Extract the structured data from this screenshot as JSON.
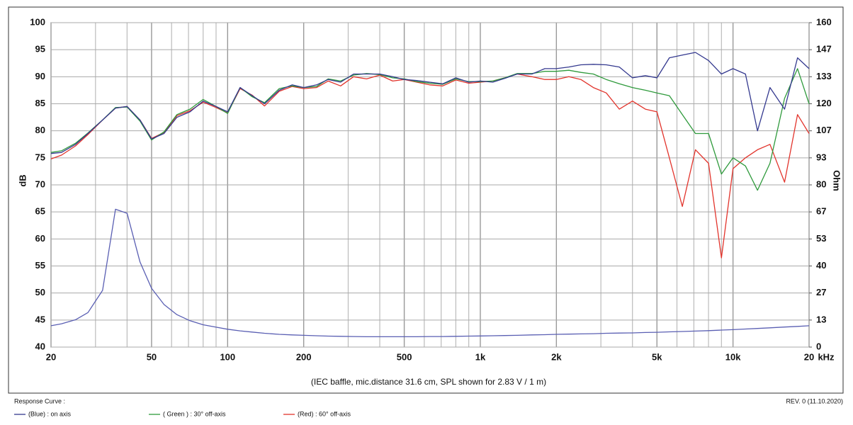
{
  "chart_data": {
    "type": "line",
    "ylabel": "dB",
    "y2label": "Ohm",
    "xlabel": "kHz",
    "caption": "(IEC baffle, mic.distance 31.6 cm, SPL shown for 2.83 V / 1 m)",
    "legend_title": "Response Curve :",
    "revision": "REV. 0 (11.10.2020)",
    "xscale": "log",
    "grid": true,
    "xlim": [
      20,
      20000
    ],
    "ylim": [
      40,
      100
    ],
    "y2lim": [
      0,
      160
    ],
    "xticks": [
      20,
      50,
      100,
      200,
      500,
      {
        "value": 1000,
        "label": "1k"
      },
      {
        "value": 2000,
        "label": "2k"
      },
      {
        "value": 5000,
        "label": "5k"
      },
      {
        "value": 10000,
        "label": "10k"
      },
      {
        "value": 20000,
        "label": "20"
      }
    ],
    "xminor": [
      30,
      40,
      60,
      70,
      80,
      90,
      300,
      400,
      600,
      700,
      800,
      900,
      3000,
      4000,
      6000,
      7000,
      8000,
      9000
    ],
    "yticks": [
      40,
      45,
      50,
      55,
      60,
      65,
      70,
      75,
      80,
      85,
      90,
      95,
      100
    ],
    "y2ticks": [
      0,
      {
        "value": 13.333,
        "label": "13"
      },
      {
        "value": 26.667,
        "label": "27"
      },
      40,
      {
        "value": 53.333,
        "label": "53"
      },
      {
        "value": 66.667,
        "label": "67"
      },
      80,
      {
        "value": 93.333,
        "label": "93"
      },
      {
        "value": 106.667,
        "label": "107"
      },
      120,
      {
        "value": 133.333,
        "label": "133"
      },
      {
        "value": 146.667,
        "label": "147"
      },
      160
    ],
    "x": [
      20,
      22,
      25,
      28,
      32,
      36,
      40,
      45,
      50,
      56,
      63,
      71,
      80,
      90,
      100,
      112,
      125,
      140,
      160,
      180,
      200,
      225,
      250,
      280,
      315,
      355,
      400,
      450,
      500,
      560,
      630,
      710,
      800,
      900,
      1000,
      1120,
      1250,
      1400,
      1600,
      1800,
      2000,
      2240,
      2500,
      2800,
      3150,
      3550,
      4000,
      4500,
      5000,
      5600,
      6300,
      7100,
      8000,
      9000,
      10000,
      11200,
      12500,
      14000,
      16000,
      18000,
      20000
    ],
    "series": [
      {
        "name": "(Blue) : on axis",
        "color": "#34398f",
        "values": [
          75.8,
          76,
          77.5,
          79.5,
          82,
          84.2,
          84.5,
          82,
          78.5,
          79.5,
          82.5,
          83.5,
          85.5,
          84.5,
          83.5,
          88,
          86.5,
          85,
          87.5,
          88.5,
          88,
          88.5,
          89.5,
          89,
          90.5,
          90.5,
          90.5,
          90,
          89.5,
          89.3,
          89,
          88.7,
          89.8,
          89,
          89.2,
          89,
          89.7,
          90.5,
          90.5,
          91.5,
          91.5,
          91.8,
          92.2,
          92.3,
          92.2,
          91.8,
          89.8,
          90.2,
          89.8,
          93.5,
          94,
          94.5,
          93,
          90.5,
          91.5,
          90.5,
          80,
          88,
          84,
          93.5,
          91.5
        ]
      },
      {
        "name": "( Green ) : 30° off-axis",
        "color": "#2f9a3c",
        "values": [
          76,
          76.3,
          77.7,
          79.6,
          82,
          84.3,
          84.4,
          81.8,
          78.3,
          79.8,
          83,
          84,
          85.8,
          84.5,
          83.2,
          88,
          86.3,
          85.2,
          87.8,
          88.3,
          88,
          88.2,
          89.6,
          89.2,
          90.3,
          90.6,
          90.4,
          89.8,
          89.6,
          89.1,
          88.8,
          88.6,
          89.6,
          89.1,
          89.1,
          89.2,
          89.8,
          90.6,
          90.6,
          91,
          91,
          91.2,
          90.8,
          90.5,
          89.5,
          88.7,
          88,
          87.5,
          87,
          86.5,
          83,
          79.5,
          79.5,
          72,
          75,
          73.5,
          69,
          74,
          86,
          91.5,
          85
        ]
      },
      {
        "name": "(Red) : 60° off-axis",
        "color": "#e2342c",
        "values": [
          74.8,
          75.5,
          77.2,
          79.3,
          82,
          84.2,
          84.5,
          82,
          78.6,
          79.7,
          82.8,
          83.7,
          85.3,
          84.3,
          83.3,
          87.8,
          86.6,
          84.6,
          87.3,
          88.2,
          87.8,
          88,
          89.2,
          88.3,
          90,
          89.6,
          90.3,
          89.2,
          89.5,
          89,
          88.5,
          88.3,
          89.4,
          88.8,
          89,
          89.2,
          89.8,
          90.5,
          90,
          89.5,
          89.5,
          90,
          89.5,
          88,
          87,
          84,
          85.5,
          84,
          83.5,
          75,
          66,
          76.5,
          74,
          56.5,
          73,
          75,
          76.5,
          77.5,
          70.5,
          83,
          79.5
        ]
      },
      {
        "axis": "y2",
        "color": "#5a5fb3",
        "values": [
          10.5,
          11.5,
          13.5,
          17,
          28,
          68,
          66,
          42,
          29,
          21,
          16,
          13,
          11,
          9.8,
          8.8,
          8,
          7.4,
          6.8,
          6.3,
          6,
          5.8,
          5.6,
          5.4,
          5.3,
          5.2,
          5.1,
          5.1,
          5.1,
          5.1,
          5.1,
          5.2,
          5.2,
          5.3,
          5.4,
          5.5,
          5.6,
          5.7,
          5.8,
          6,
          6.1,
          6.3,
          6.4,
          6.5,
          6.6,
          6.8,
          6.9,
          7,
          7.2,
          7.3,
          7.5,
          7.7,
          7.9,
          8.1,
          8.4,
          8.6,
          8.9,
          9.2,
          9.5,
          9.9,
          10.2,
          10.5
        ]
      }
    ]
  }
}
